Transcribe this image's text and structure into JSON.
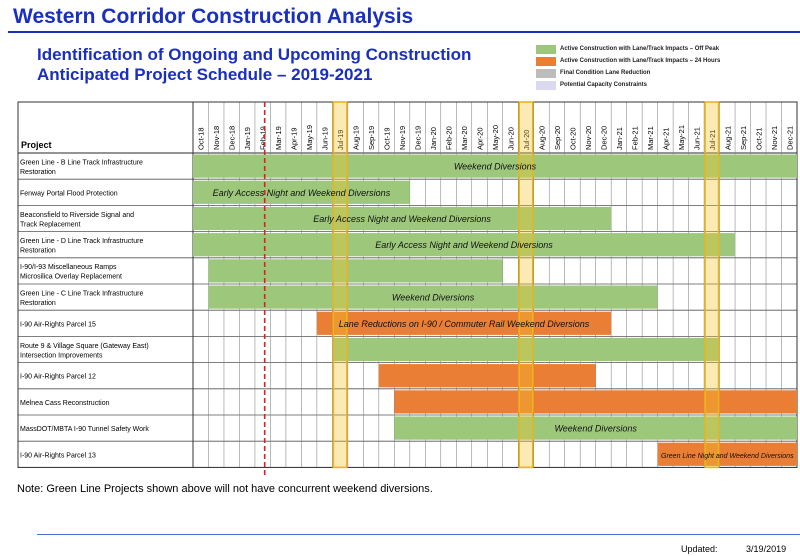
{
  "header": {
    "title": "Western Corridor Construction Analysis",
    "subtitle_line1": "Identification of Ongoing and Upcoming Construction",
    "subtitle_line2": "Anticipated Project Schedule – 2019-2021"
  },
  "legend": [
    {
      "label": "Active Construction with Lane/Track Impacts – Off Peak",
      "color": "#9dc87c"
    },
    {
      "label": "Active Construction with Lane/Track Impacts – 24 Hours",
      "color": "#ea7e34"
    },
    {
      "label": "Final Condition Lane Reduction",
      "color": "#bcbcbc"
    },
    {
      "label": "Potential Capacity Constraints",
      "color": "#dad9f0"
    }
  ],
  "chart_data": {
    "type": "gantt",
    "row_header": "Project",
    "months": [
      "Oct-18",
      "Nov-18",
      "Dec-18",
      "Jan-19",
      "Feb-19",
      "Mar-19",
      "Apr-19",
      "May-19",
      "Jun-19",
      "Jul-19",
      "Aug-19",
      "Sep-19",
      "Oct-19",
      "Nov-19",
      "Dec-19",
      "Jan-20",
      "Feb-20",
      "Mar-20",
      "Apr-20",
      "May-20",
      "Jun-20",
      "Jul-20",
      "Aug-20",
      "Sep-20",
      "Oct-20",
      "Nov-20",
      "Dec-20",
      "Jan-21",
      "Feb-21",
      "Mar-21",
      "Apr-21",
      "May-21",
      "Jun-21",
      "Jul-21",
      "Aug-21",
      "Sep-21",
      "Oct-21",
      "Nov-21",
      "Dec-21"
    ],
    "highlighted_months": [
      "Jul-19",
      "Jul-20",
      "Jul-21"
    ],
    "marker_month": "Feb-19",
    "tasks": [
      {
        "name": "Green Line - B Line Track Infrastructure Restoration",
        "start": "Oct-18",
        "end": "Dec-21",
        "type": "off-peak",
        "label": "Weekend Diversions"
      },
      {
        "name": "Fenway Portal Flood Protection",
        "start": "Oct-18",
        "end": "Nov-19",
        "type": "off-peak",
        "label": "Early Access Night and Weekend Diversions"
      },
      {
        "name": "Beaconsfield to Riverside Signal and Track Replacement",
        "start": "Oct-18",
        "end": "Dec-20",
        "type": "off-peak",
        "label": "Early Access Night and Weekend Diversions"
      },
      {
        "name": "Green Line - D Line Track Infrastructure Restoration",
        "start": "Oct-18",
        "end": "Aug-21",
        "type": "off-peak",
        "label": "Early Access Night and Weekend Diversions"
      },
      {
        "name": "I-90/I-93 Miscellaneous Ramps Microsilica Overlay Replacement",
        "start": "Nov-18",
        "end": "May-20",
        "type": "off-peak",
        "label": ""
      },
      {
        "name": "Green Line - C Line Track Infrastructure Restoration",
        "start": "Nov-18",
        "end": "Mar-21",
        "type": "off-peak",
        "label": "Weekend Diversions"
      },
      {
        "name": "I-90 Air-Rights Parcel 15",
        "start": "Jun-19",
        "end": "Dec-20",
        "type": "24-hours",
        "label": "Lane Reductions on I-90 / Commuter Rail Weekend Diversions"
      },
      {
        "name": "Route 9 & Village Square (Gateway East) Intersection Improvements",
        "start": "Jul-19",
        "end": "Jul-21",
        "type": "off-peak",
        "label": ""
      },
      {
        "name": "I-90 Air-Rights Parcel 12",
        "start": "Oct-19",
        "end": "Nov-20",
        "type": "24-hours",
        "label": ""
      },
      {
        "name": "Melnea Cass Reconstruction",
        "start": "Nov-19",
        "end": "Dec-21",
        "type": "24-hours",
        "label": ""
      },
      {
        "name": "MassDOT/MBTA I-90 Tunnel Safety Work",
        "start": "Nov-19",
        "end": "Dec-21",
        "type": "off-peak",
        "label": "Weekend Diversions"
      },
      {
        "name": "I-90 Air-Rights Parcel 13",
        "start": "Apr-21",
        "end": "Dec-21",
        "type": "24-hours",
        "label": "Green Line Night and Weekend Diversions"
      }
    ]
  },
  "note": "Note: Green Line Projects shown above will not have concurrent weekend diversions.",
  "footer": {
    "updated_label": "Updated:",
    "updated_date": "3/19/2019"
  }
}
